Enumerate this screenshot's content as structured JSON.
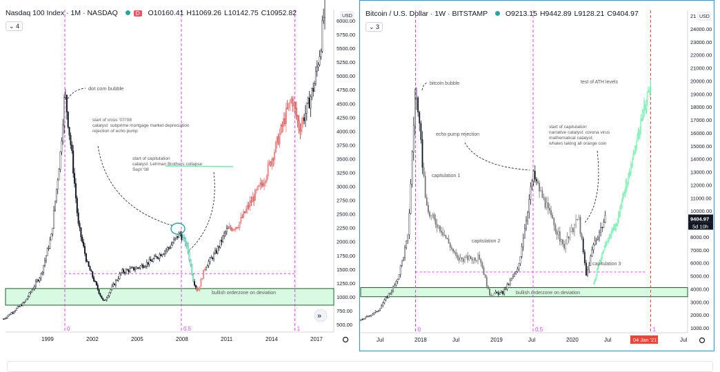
{
  "panels": [
    {
      "title": "Nasdaq 100 Index · 1M · NASDAQ",
      "badge": "D",
      "ohlc": [
        "O10160.41",
        "H11069.26",
        "L10142.75",
        "C10952.82"
      ],
      "collapse_count": "4",
      "currency": "USD",
      "nav_arrow": "»",
      "settings_icon": "gear-icon",
      "colors": {
        "down": "#e57373",
        "up_green": "#26a69a",
        "green_zone": "#b9f6ca",
        "magenta": "#e040fb"
      },
      "chart_data": {
        "type": "candlestick",
        "x_ticks": [
          "1999",
          "2002",
          "2005",
          "2008",
          "2011",
          "2014",
          "2017"
        ],
        "y_ticks": [
          "500.00",
          "750.00",
          "1000.00",
          "1250.00",
          "1500.00",
          "1750.00",
          "2000.00",
          "2250.00",
          "2500.00",
          "2750.00",
          "3000.00",
          "3250.00",
          "3500.00",
          "3750.00",
          "4000.00",
          "4250.00",
          "4500.00",
          "4750.00",
          "5000.00",
          "5250.00",
          "5500.00",
          "5750.00",
          "6000.00"
        ],
        "ylim": [
          270,
          6400
        ],
        "fib_labels": [
          "0",
          "0.5",
          "1"
        ],
        "fib_x_dates": [
          2000.2,
          2008.0,
          2015.6
        ],
        "path": [
          [
            1996.1,
            600
          ],
          [
            1997.5,
            900
          ],
          [
            1998.6,
            1400
          ],
          [
            1999.3,
            2100
          ],
          [
            1999.9,
            3600
          ],
          [
            2000.2,
            4700
          ],
          [
            2000.7,
            3500
          ],
          [
            2001.1,
            2300
          ],
          [
            2001.7,
            1600
          ],
          [
            2002.3,
            1200
          ],
          [
            2002.8,
            900
          ],
          [
            2003.2,
            1100
          ],
          [
            2004.0,
            1450
          ],
          [
            2005.0,
            1520
          ],
          [
            2006.0,
            1650
          ],
          [
            2007.2,
            1900
          ],
          [
            2007.9,
            2150
          ],
          [
            2008.4,
            1900
          ],
          [
            2008.8,
            1300
          ],
          [
            2009.1,
            1100
          ],
          [
            2009.6,
            1550
          ],
          [
            2010.3,
            1800
          ],
          [
            2011.0,
            2200
          ],
          [
            2011.8,
            2300
          ],
          [
            2012.6,
            2700
          ],
          [
            2013.5,
            3100
          ],
          [
            2014.3,
            3700
          ],
          [
            2015.0,
            4300
          ],
          [
            2015.4,
            4600
          ],
          [
            2015.9,
            4050
          ],
          [
            2016.4,
            4400
          ],
          [
            2016.9,
            4850
          ],
          [
            2017.3,
            5500
          ],
          [
            2017.6,
            6300
          ]
        ],
        "green_zone": [
          850,
          1150
        ],
        "dashed_level": 1420,
        "annotations": [
          "dot com bubble",
          "start of crisis '07/'08\ncatalyst: subprime mortgage market depreciation\nrejection of echo pump",
          "start of capitulation\ncatalyst: Lehman Brothers collapse\nSept '08",
          "bullish orderzone on deviation"
        ]
      }
    },
    {
      "title": "Bitcoin / U.S. Dollar · 1W · BITSTAMP",
      "ohlc": [
        "O9213.15",
        "H9442.89",
        "L9128.21",
        "C9404.97"
      ],
      "collapse_count": "3",
      "currency": "USD",
      "price_label": "9404.97",
      "countdown": "5d 10h",
      "date_badge": "04 Jan '21",
      "top_tick": "21",
      "settings_icon": "gear-icon",
      "chart_data": {
        "type": "candlestick",
        "x_ticks": [
          "Jul",
          "2018",
          "Jul",
          "2019",
          "Jul",
          "2020",
          "Jul",
          "Jul"
        ],
        "y_ticks": [
          "1000.00",
          "2000.00",
          "3000.00",
          "4000.00",
          "5000.00",
          "6000.00",
          "7000.00",
          "8000.00",
          "9000.00",
          "10000.00",
          "11000.00",
          "12000.00",
          "13000.00",
          "14000.00",
          "15000.00",
          "16000.00",
          "17000.00",
          "18000.00",
          "19000.00",
          "20000.00",
          "21000.00",
          "22000.00",
          "23000.00",
          "24000.00"
        ],
        "ylim": [
          0,
          25300
        ],
        "fib_labels": [
          "0",
          "0.5",
          "1"
        ],
        "path": [
          [
            2017.0,
            900
          ],
          [
            2017.45,
            2300
          ],
          [
            2017.7,
            4500
          ],
          [
            2017.85,
            8000
          ],
          [
            2017.95,
            19500
          ],
          [
            2018.1,
            10000
          ],
          [
            2018.3,
            8500
          ],
          [
            2018.5,
            6300
          ],
          [
            2018.8,
            6400
          ],
          [
            2018.92,
            3600
          ],
          [
            2019.1,
            3700
          ],
          [
            2019.3,
            5500
          ],
          [
            2019.5,
            12800
          ],
          [
            2019.7,
            10000
          ],
          [
            2019.9,
            7200
          ],
          [
            2020.1,
            9500
          ],
          [
            2020.2,
            5000
          ],
          [
            2020.3,
            7500
          ],
          [
            2020.45,
            9400
          ]
        ],
        "projection": [
          [
            2020.3,
            4500
          ],
          [
            2020.45,
            7500
          ],
          [
            2020.6,
            9000
          ],
          [
            2020.75,
            12500
          ],
          [
            2020.85,
            15000
          ],
          [
            2020.95,
            17500
          ],
          [
            2021.05,
            19500
          ]
        ],
        "green_zone": [
          3400,
          4100
        ],
        "dashed_level": 5300,
        "annotations": [
          "bitcoin bubble",
          "echo pump rejection",
          "capitulation 1",
          "capitulation 2",
          "start of capitulation\nnarrative catalyst: corona virus\nmathematical catalyst:\nwhales taking all orange coin",
          "test of ATH levels",
          "capitulation 3",
          "bullish orderzone on deviation"
        ]
      }
    }
  ]
}
